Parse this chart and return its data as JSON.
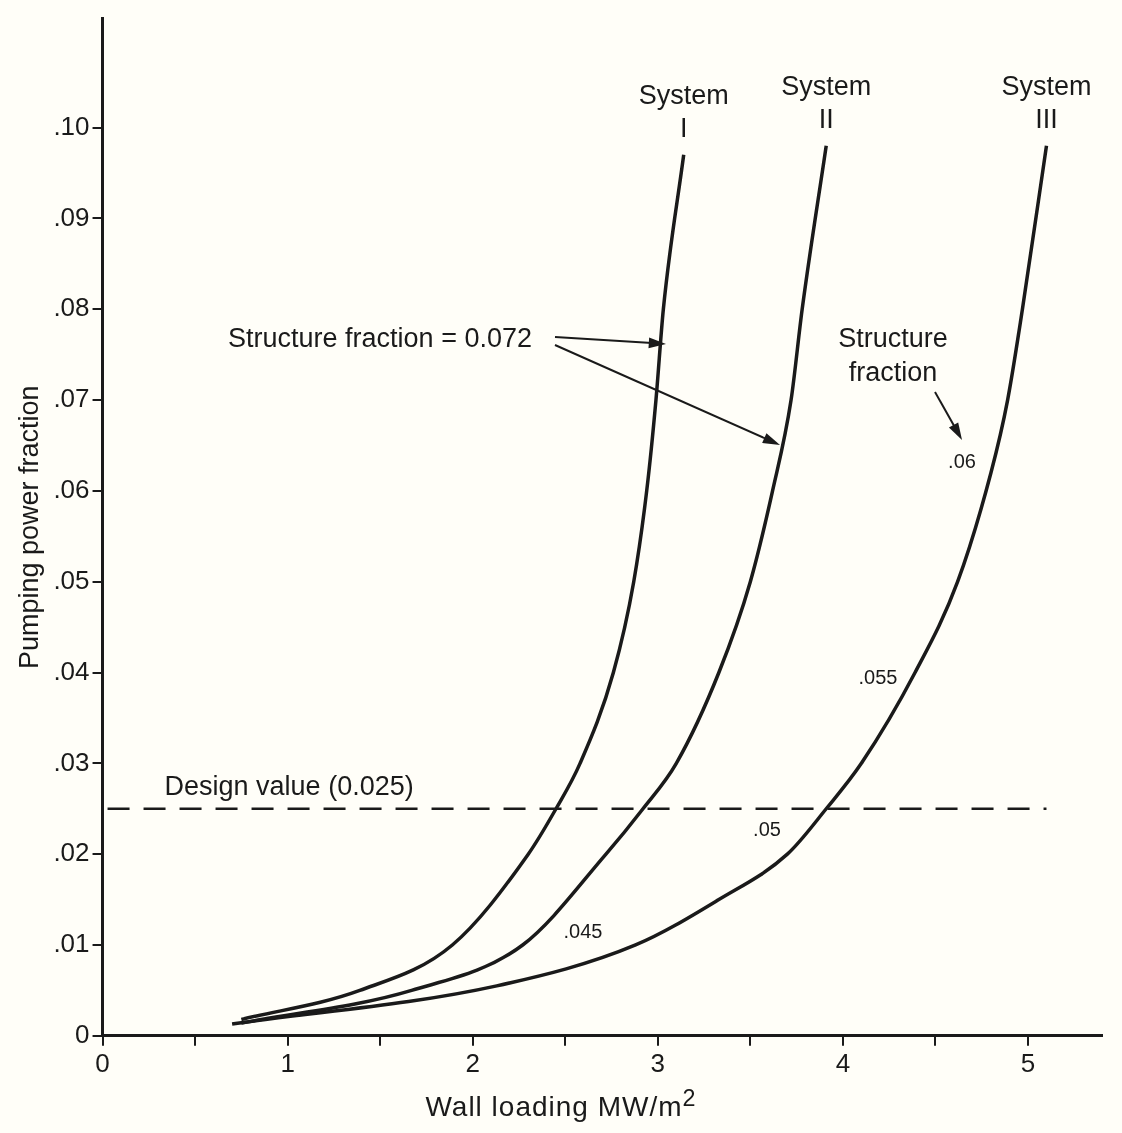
{
  "chart_data": {
    "type": "line",
    "xlabel": "Wall loading MW/m$^{2}$",
    "ylabel": "Pumping power fraction",
    "xlim": [
      0,
      5.4
    ],
    "ylim": [
      0,
      0.112
    ],
    "xticks": [
      0,
      {
        "value": 0.5,
        "label": null
      },
      1,
      {
        "value": 1.5,
        "label": null
      },
      2,
      {
        "value": 2.5,
        "label": null
      },
      3,
      {
        "value": 3.5,
        "label": null
      },
      4,
      {
        "value": 4.5,
        "label": null
      },
      5
    ],
    "yticks": [
      0,
      {
        "value": 0.01,
        "label": ".01"
      },
      {
        "value": 0.02,
        "label": ".02"
      },
      {
        "value": 0.03,
        "label": ".03"
      },
      {
        "value": 0.04,
        "label": ".04"
      },
      {
        "value": 0.05,
        "label": ".05"
      },
      {
        "value": 0.06,
        "label": ".06"
      },
      {
        "value": 0.07,
        "label": ".07"
      },
      {
        "value": 0.08,
        "label": ".08"
      },
      {
        "value": 0.09,
        "label": ".09"
      },
      {
        "value": 0.1,
        "label": ".10"
      }
    ],
    "series": [
      {
        "name": "System I",
        "color": "#1a1a1a",
        "x": [
          0.75,
          1.39,
          1.89,
          2.3,
          2.45,
          2.58,
          2.76,
          2.87,
          2.94,
          2.99,
          3.03,
          3.14
        ],
        "values": [
          0.0018,
          0.005,
          0.01,
          0.02,
          0.025,
          0.03,
          0.04,
          0.05,
          0.06,
          0.07,
          0.08,
          0.097
        ]
      },
      {
        "name": "System II",
        "color": "#1a1a1a",
        "x": [
          0.75,
          1.67,
          2.27,
          2.72,
          2.92,
          3.1,
          3.33,
          3.5,
          3.62,
          3.72,
          3.78,
          3.91
        ],
        "values": [
          0.0014,
          0.005,
          0.01,
          0.02,
          0.025,
          0.03,
          0.04,
          0.05,
          0.06,
          0.07,
          0.08,
          0.098
        ]
      },
      {
        "name": "System III",
        "color": "#1a1a1a",
        "x": [
          0.7,
          2.13,
          2.88,
          3.33,
          3.7,
          3.91,
          4.1,
          4.39,
          4.62,
          4.8,
          4.89,
          4.97,
          5.1
        ],
        "values": [
          0.0013,
          0.0055,
          0.01,
          0.015,
          0.02,
          0.025,
          0.03,
          0.04,
          0.05,
          0.062,
          0.07,
          0.08,
          0.098
        ]
      }
    ],
    "ref_lines": [
      {
        "axis": "y",
        "value": 0.025,
        "label": "Design value (0.025)",
        "line_style": "dashed",
        "color": "#1a1a1a"
      }
    ],
    "annotations": [
      "Structure fraction = 0.072",
      "Structure fraction",
      ".045",
      ".05",
      ".055",
      ".06"
    ],
    "grid": false,
    "legend": false,
    "marker": "none",
    "line_style": "solid"
  }
}
